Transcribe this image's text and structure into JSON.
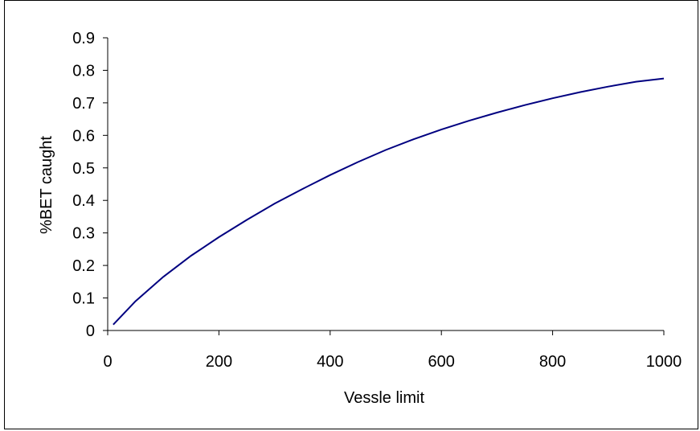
{
  "chart_data": {
    "type": "line",
    "title": "",
    "xlabel": "Vessle limit",
    "ylabel": "%BET caught",
    "xlim": [
      0,
      1000
    ],
    "ylim": [
      0,
      0.9
    ],
    "x_ticks": [
      0,
      200,
      400,
      600,
      800,
      1000
    ],
    "y_ticks": [
      0,
      0.1,
      0.2,
      0.3,
      0.4,
      0.5,
      0.6,
      0.7,
      0.8,
      0.9
    ],
    "grid": false,
    "legend": "none",
    "line_color": "#000080",
    "series": [
      {
        "x": [
          10,
          50,
          100,
          150,
          200,
          250,
          300,
          350,
          400,
          450,
          500,
          550,
          600,
          650,
          700,
          750,
          800,
          850,
          900,
          950,
          1000
        ],
        "y": [
          0.018,
          0.09,
          0.165,
          0.23,
          0.287,
          0.34,
          0.39,
          0.435,
          0.478,
          0.518,
          0.555,
          0.588,
          0.618,
          0.645,
          0.67,
          0.693,
          0.714,
          0.733,
          0.75,
          0.765,
          0.775
        ]
      }
    ]
  }
}
